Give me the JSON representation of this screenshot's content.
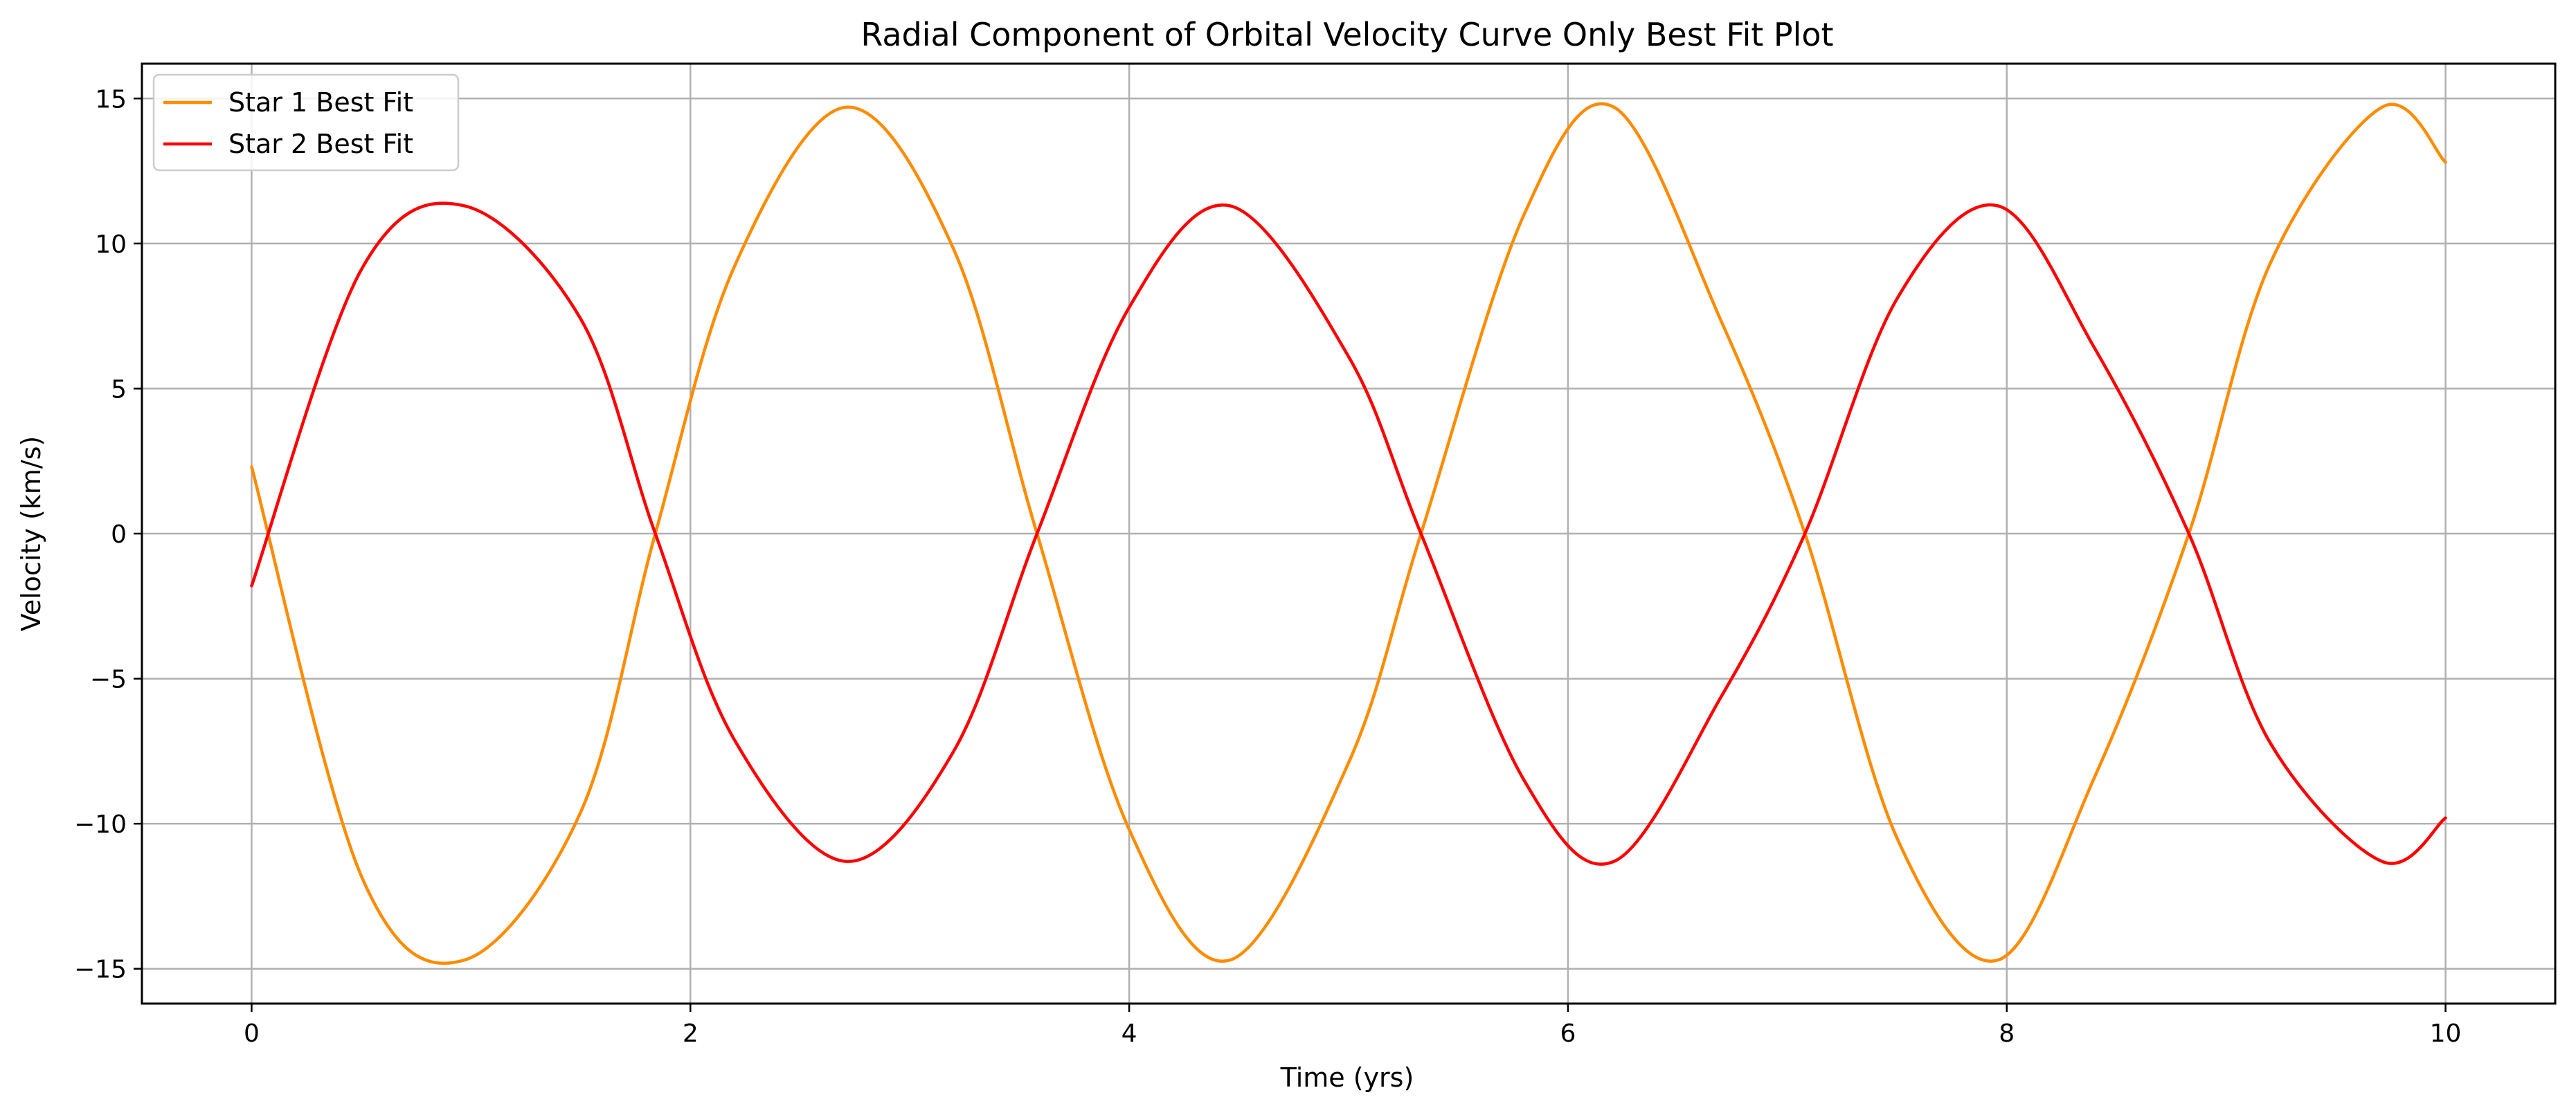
{
  "chart_data": {
    "type": "line",
    "title": "Radial Component of Orbital Velocity Curve Only Best Fit Plot",
    "xlabel": "Time (yrs)",
    "ylabel": "Velocity (km/s)",
    "xlim": [
      -0.5,
      10.5
    ],
    "ylim": [
      -16.2,
      16.2
    ],
    "xticks": [
      0,
      2,
      4,
      6,
      8,
      10
    ],
    "xtick_labels": [
      "0",
      "2",
      "4",
      "6",
      "8",
      "10"
    ],
    "yticks": [
      15,
      10,
      5,
      0,
      -5,
      -10,
      -15
    ],
    "ytick_labels": [
      "15",
      "10",
      "5",
      "0",
      "−5",
      "−10",
      "−15"
    ],
    "grid": true,
    "legend_position": "top-left",
    "x": [
      0,
      0.5,
      0.97,
      1.5,
      1.84,
      2.2,
      2.71,
      3.2,
      3.58,
      4.0,
      4.46,
      5.0,
      5.33,
      5.8,
      6.21,
      6.7,
      7.08,
      7.5,
      7.96,
      8.4,
      8.83,
      9.2,
      9.71,
      10.0
    ],
    "series": [
      {
        "name": "Star 1 Best Fit",
        "color": "#ff8c00",
        "values": [
          2.3,
          -11.8,
          -14.7,
          -9.6,
          0.0,
          9.2,
          14.7,
          9.8,
          0.0,
          -10.2,
          -14.7,
          -7.9,
          0.0,
          11.0,
          14.7,
          7.3,
          0.0,
          -10.5,
          -14.7,
          -8.4,
          0.0,
          9.3,
          14.7,
          12.8
        ]
      },
      {
        "name": "Star 2 Best Fit",
        "color": "#ff0000",
        "values": [
          -1.8,
          9.1,
          11.3,
          7.4,
          0.0,
          -7.1,
          -11.3,
          -7.5,
          0.0,
          7.8,
          11.3,
          6.1,
          0.0,
          -8.5,
          -11.3,
          -5.6,
          0.0,
          8.1,
          11.3,
          6.4,
          0.0,
          -7.2,
          -11.3,
          -9.8
        ]
      }
    ]
  }
}
